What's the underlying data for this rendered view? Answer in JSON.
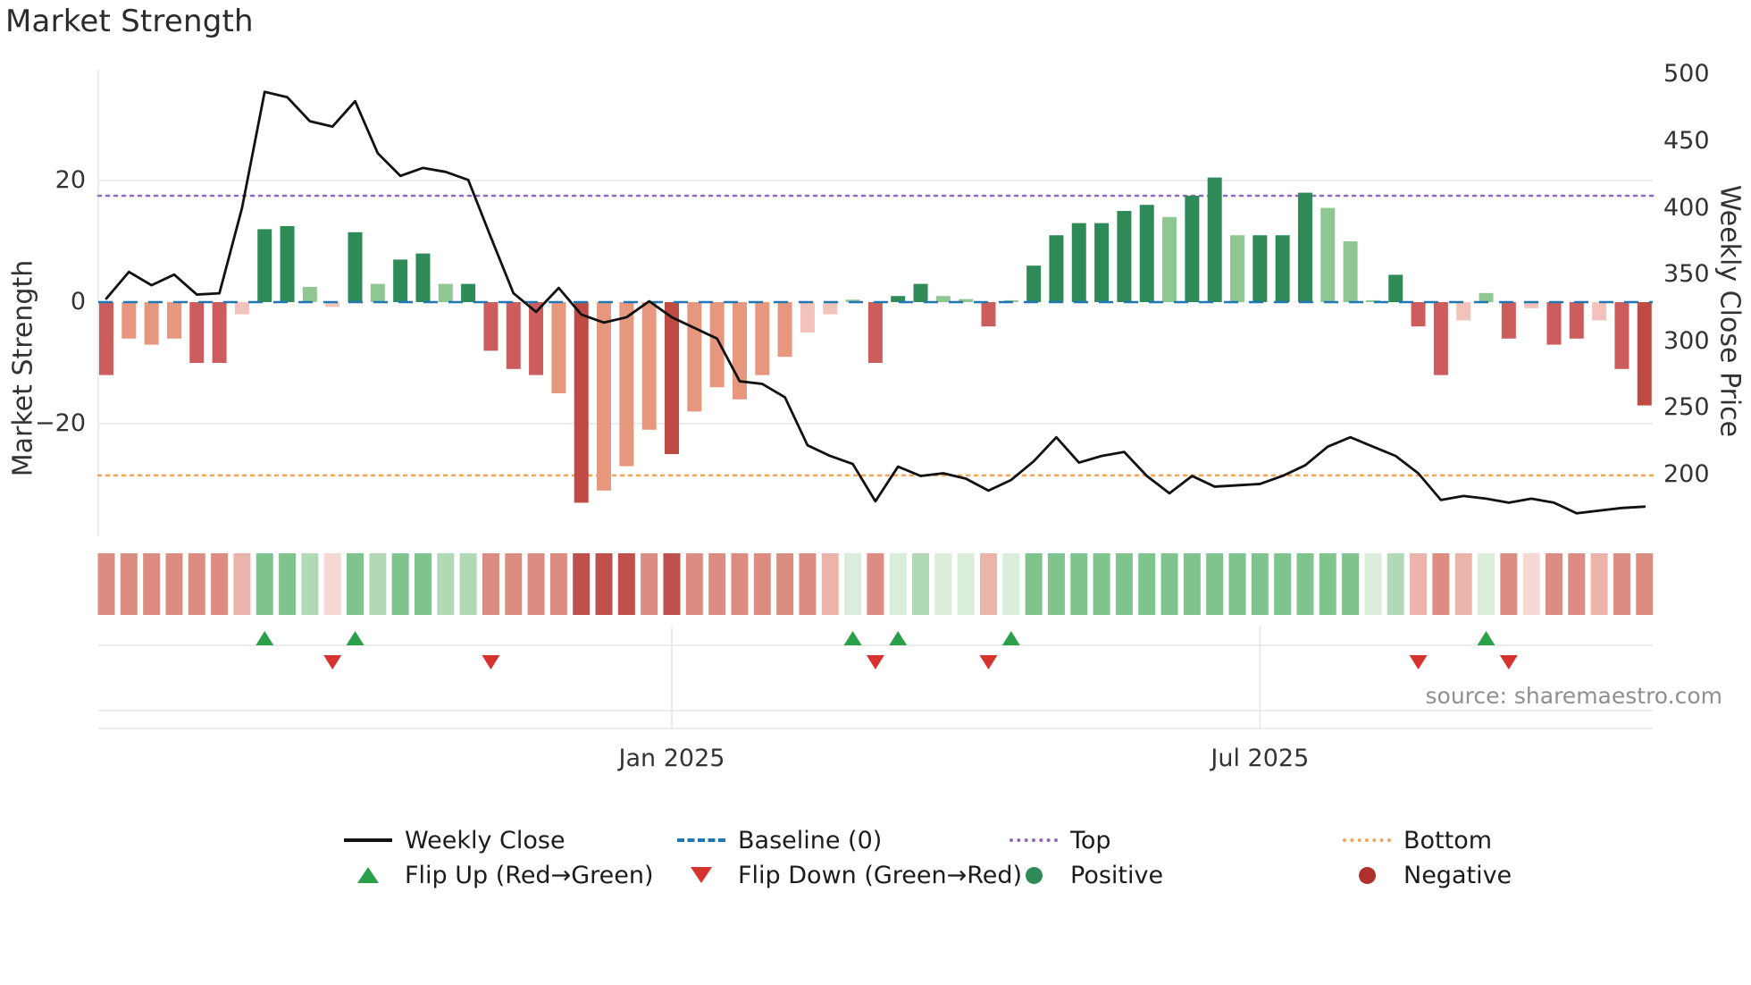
{
  "title": "Market Strength",
  "source": "source: sharemaestro.com",
  "axes": {
    "left_label": "Market Strength",
    "right_label": "Weekly Close Price",
    "left_ticks": [
      {
        "label": "20",
        "value": 20
      },
      {
        "label": "0",
        "value": 0
      },
      {
        "label": "−20",
        "value": -20
      }
    ],
    "right_ticks": [
      {
        "label": "500",
        "value": 500
      },
      {
        "label": "450",
        "value": 450
      },
      {
        "label": "400",
        "value": 400
      },
      {
        "label": "350",
        "value": 350
      },
      {
        "label": "300",
        "value": 300
      },
      {
        "label": "250",
        "value": 250
      },
      {
        "label": "200",
        "value": 200
      }
    ],
    "x_ticks": [
      {
        "label": "Jan 2025",
        "index": 25
      },
      {
        "label": "Jul 2025",
        "index": 51
      }
    ]
  },
  "chart_data": {
    "type": "bar",
    "title": "Market Strength",
    "x_unit": "week",
    "left_axis": {
      "label": "Market Strength",
      "ticks": [
        20,
        0,
        -20
      ],
      "ylim": [
        -38,
        38
      ]
    },
    "right_axis": {
      "label": "Weekly Close Price",
      "ticks": [
        500,
        450,
        400,
        350,
        300,
        250,
        200
      ],
      "ylim": [
        155,
        505
      ]
    },
    "baseline": 0,
    "top_level": 17.5,
    "bottom_level": -28.5,
    "strength_bars": {
      "name": "Market Strength",
      "values": [
        -12,
        -6,
        -7,
        -6,
        -10,
        -10,
        -2,
        12,
        12.5,
        2.5,
        -0.8,
        11.5,
        3,
        7,
        8,
        3,
        3,
        -8,
        -11,
        -12,
        -15,
        -33,
        -31,
        -27,
        -21,
        -25,
        -18,
        -14,
        -16,
        -12,
        -9,
        -5,
        -2,
        0.4,
        -10,
        1,
        3,
        1,
        0.5,
        -4,
        0.3,
        6,
        11,
        13,
        13,
        15,
        16,
        14,
        17.5,
        20.5,
        11,
        11,
        11,
        18,
        15.5,
        10,
        0.3,
        4.5,
        -4,
        -12,
        -3,
        1.5,
        -6,
        -1,
        -7,
        -6,
        -3,
        -11,
        -17
      ],
      "shades": [
        "r2",
        "r1",
        "r1",
        "r1",
        "r2",
        "r2",
        "r0",
        "g2",
        "g2",
        "g1",
        "r0",
        "g2",
        "g1",
        "g2",
        "g2",
        "g1",
        "g2",
        "r2",
        "r2",
        "r2",
        "r1",
        "r3",
        "r1",
        "r1",
        "r1",
        "r3",
        "r1",
        "r1",
        "r1",
        "r1",
        "r1",
        "r0",
        "r0",
        "g1",
        "r2",
        "g2",
        "g2",
        "g1",
        "g1",
        "r2",
        "g1",
        "g2",
        "g2",
        "g2",
        "g2",
        "g2",
        "g2",
        "g1",
        "g2",
        "g2",
        "g1",
        "g2",
        "g2",
        "g2",
        "g1",
        "g1",
        "g1",
        "g2",
        "r2",
        "r2",
        "r0",
        "g1",
        "r2",
        "r0",
        "r2",
        "r2",
        "r0",
        "r2",
        "r3"
      ]
    },
    "weekly_close": {
      "name": "Weekly Close",
      "values": [
        332,
        352,
        342,
        350,
        335,
        336,
        400,
        487,
        483,
        465,
        461,
        480,
        441,
        424,
        430,
        427,
        421,
        378,
        336,
        322,
        340,
        320,
        314,
        318,
        330,
        318,
        310,
        302,
        270,
        268,
        258,
        222,
        214,
        208,
        180,
        206,
        199,
        201,
        197,
        188,
        196,
        210,
        228,
        209,
        214,
        217,
        199,
        186,
        199,
        191,
        192,
        193,
        199,
        207,
        221,
        228,
        221,
        214,
        201,
        181,
        184,
        182,
        179,
        182,
        179,
        171,
        173,
        175,
        176
      ]
    },
    "flip_up_indices": [
      7,
      11,
      33,
      35,
      40,
      61
    ],
    "flip_down_indices": [
      10,
      17,
      34,
      39,
      58,
      62
    ]
  },
  "legend": {
    "rows": [
      [
        {
          "label": "Weekly Close",
          "swatch": "line-black"
        },
        {
          "label": "Baseline (0)",
          "swatch": "dash-blue"
        },
        {
          "label": "Top",
          "swatch": "dot-purple"
        },
        {
          "label": "Bottom",
          "swatch": "dot-orange"
        }
      ],
      [
        {
          "label": "Flip Up (Red→Green)",
          "swatch": "tri-up"
        },
        {
          "label": "Flip Down (Green→Red)",
          "swatch": "tri-down"
        },
        {
          "label": "Positive",
          "swatch": "circle-pos"
        },
        {
          "label": "Negative",
          "swatch": "circle-neg"
        }
      ]
    ]
  },
  "colors": {
    "line": "#111111",
    "baseline": "#1f77b4",
    "top": "#9467bd",
    "bottom": "#f2a65a",
    "flip_up": "#2aa04a",
    "flip_down": "#d6332f",
    "positive_dot": "#2e8b57",
    "negative_dot": "#b03030",
    "grid": "#e7e7e7",
    "bar": {
      "g2": "#2e8b57",
      "g1": "#8fc793",
      "r0": "#f1c3bb",
      "r1": "#e6977d",
      "r2": "#cd5c5c",
      "r3": "#bf4a44"
    },
    "heat": {
      "pos_strong": "#53a86d",
      "pos": "#7fc48c",
      "pos_light": "#b2d9b6",
      "pos_faint": "#d9edda",
      "neg_strong": "#c0504b",
      "neg": "#dd8c82",
      "neg_light": "#eab4ab",
      "neg_faint": "#f5d8d4"
    }
  }
}
